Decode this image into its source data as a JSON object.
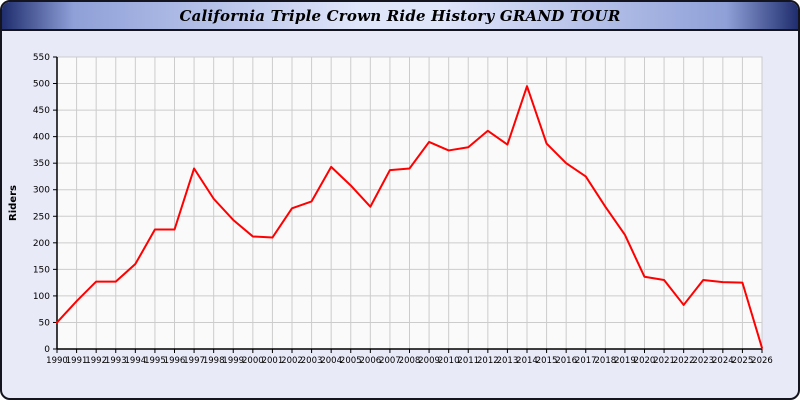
{
  "window": {
    "title": "California Triple Crown Ride History GRAND TOUR"
  },
  "colors": {
    "page_bg": "#e9eaf7",
    "frame_border": "#14141e",
    "title_edge": "#1f2d6e",
    "title_mid": "#8fa0d8",
    "title_center": "#e0e6fa",
    "title_text": "#000000",
    "plot_bg": "#fafafa",
    "grid": "#cccccc",
    "axis": "#000000",
    "tick_label": "#000000",
    "line": "#ff0000"
  },
  "chart_data": {
    "type": "line",
    "title": "California Triple Crown Ride History GRAND TOUR",
    "xlabel": "",
    "ylabel": "Riders",
    "ylim": [
      0,
      550
    ],
    "y_tick_step": 50,
    "grid": true,
    "legend_position": "none",
    "x": [
      1990,
      1991,
      1992,
      1993,
      1994,
      1995,
      1996,
      1997,
      1998,
      1999,
      2000,
      2001,
      2002,
      2003,
      2004,
      2005,
      2006,
      2007,
      2008,
      2009,
      2010,
      2011,
      2012,
      2013,
      2014,
      2015,
      2016,
      2017,
      2018,
      2019,
      2020,
      2021,
      2022,
      2023,
      2024,
      2025,
      2026
    ],
    "series": [
      {
        "name": "Riders",
        "color": "#ff0000",
        "values": [
          50,
          90,
          127,
          127,
          160,
          225,
          225,
          340,
          283,
          243,
          212,
          210,
          265,
          278,
          343,
          308,
          268,
          337,
          340,
          390,
          374,
          380,
          411,
          385,
          495,
          387,
          350,
          325,
          268,
          215,
          136,
          130,
          83,
          130,
          126,
          125,
          2
        ]
      }
    ]
  }
}
